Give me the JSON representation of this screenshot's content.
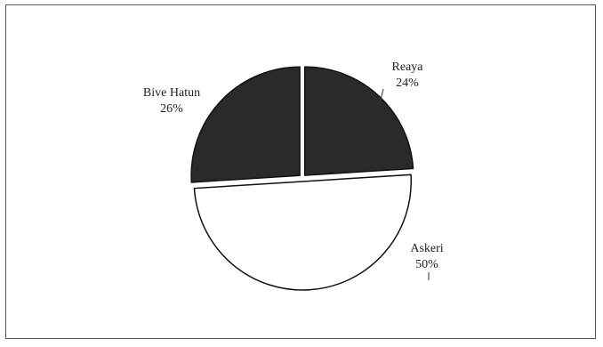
{
  "chart_data": {
    "type": "pie",
    "slices": [
      {
        "label": "Reaya",
        "percent_label": "24%",
        "value": 24,
        "color": "#2a2a2a",
        "exploded": true
      },
      {
        "label": "Askeri",
        "percent_label": "50%",
        "value": 50,
        "color": "#ffffff",
        "exploded": true
      },
      {
        "label": "Bive Hatun",
        "percent_label": "26%",
        "value": 26,
        "color": "#2a2a2a",
        "exploded": true
      }
    ],
    "title": "",
    "legend": "none"
  }
}
